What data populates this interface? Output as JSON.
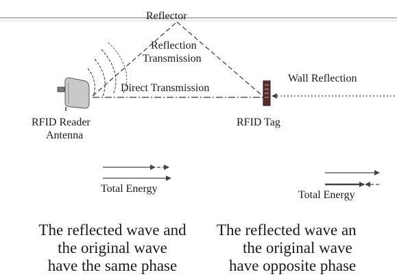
{
  "diagram": {
    "labels": {
      "reflector": "Reflector",
      "reflection": "Reflection",
      "transmission": "Transmission",
      "direct_transmission": "Direct Transmission",
      "wall_reflection": "Wall Reflection",
      "reader_line1": "RFID Reader",
      "reader_line2": "Antenna",
      "tag": "RFID Tag",
      "total_energy_left": "Total Energy",
      "total_energy_right": "Total Energy"
    },
    "icons": {
      "antenna": "rfid-reader-antenna-icon",
      "tag": "rfid-tag-icon"
    },
    "colors": {
      "line": "#333333",
      "arrow": "#444444",
      "bar": "#b8b8b8"
    }
  },
  "captions": {
    "left": [
      "The reflected wave and",
      "the original wave",
      "have the same phase"
    ],
    "right": [
      "The reflected wave an",
      "the original wave",
      "have opposite phase"
    ]
  }
}
